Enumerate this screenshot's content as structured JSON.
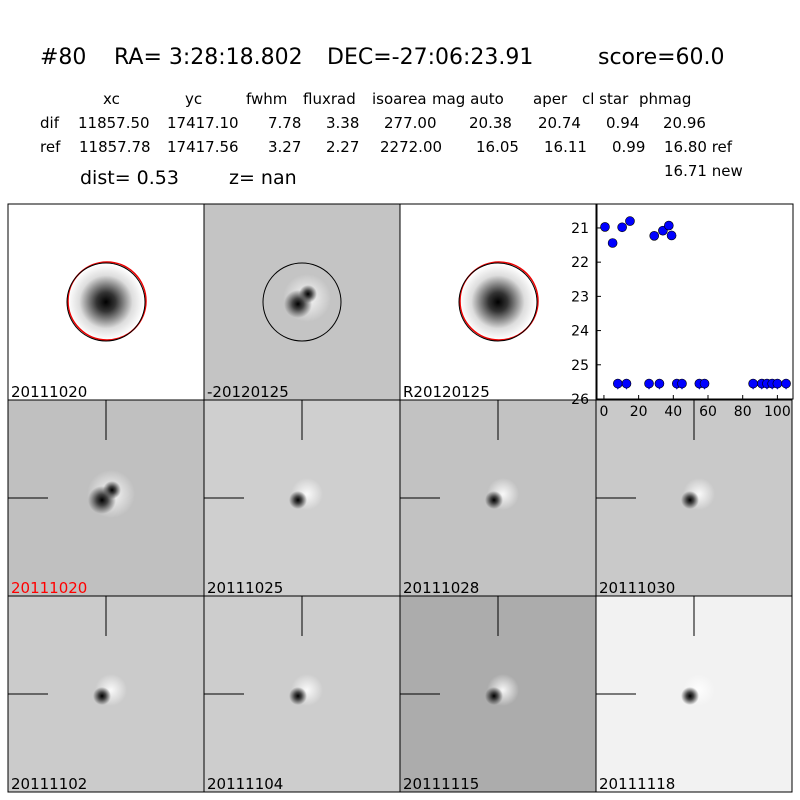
{
  "header": {
    "id": "#80",
    "ra": "RA= 3:28:18.802",
    "dec": "DEC=-27:06:23.91",
    "score": "score=60.0"
  },
  "table": {
    "columns": [
      "xc",
      "yc",
      "fwhm",
      "fluxrad",
      "isoarea",
      "mag auto",
      "aper",
      "cl star",
      "phmag"
    ],
    "rows": [
      [
        "dif",
        "11857.50",
        "17417.10",
        "7.78",
        "3.38",
        "277.00",
        "20.38",
        "20.74",
        "0.94",
        "20.96"
      ],
      [
        "ref",
        "11857.78",
        "17417.56",
        "3.27",
        "2.27",
        "2272.00",
        "16.05",
        "16.11",
        "0.99",
        "16.80 ref"
      ]
    ],
    "note": "16.71 new"
  },
  "dist": "dist=  0.53",
  "z": "z=   nan",
  "panels": [
    "20111020",
    "-20120125",
    "R20120125",
    "20111020",
    "20111025",
    "20111028",
    "20111030",
    "20111102",
    "20111104",
    "20111115",
    "20111118"
  ],
  "chart_data": {
    "type": "scatter",
    "xlim": [
      -4,
      109
    ],
    "ylim": [
      26,
      20.3
    ],
    "xticks": [
      0,
      20,
      40,
      60,
      80,
      100
    ],
    "yticks": [
      21,
      22,
      23,
      24,
      25,
      26
    ],
    "series": [
      {
        "color": "#0000ff",
        "x": [
          0.6,
          5,
          10.5,
          15,
          29,
          34,
          37.4,
          39
        ],
        "values": [
          20.97,
          21.44,
          20.98,
          20.8,
          21.23,
          21.08,
          20.93,
          21.22
        ]
      },
      {
        "color": "#0000ff",
        "x": [
          8,
          13,
          26,
          32,
          42,
          45,
          55,
          58,
          86,
          91,
          94,
          97,
          100,
          105
        ],
        "values": [
          25.55,
          25.55,
          25.55,
          25.55,
          25.55,
          25.55,
          25.55,
          25.55,
          25.55,
          25.55,
          25.55,
          25.55,
          25.55,
          25.55
        ]
      }
    ]
  }
}
